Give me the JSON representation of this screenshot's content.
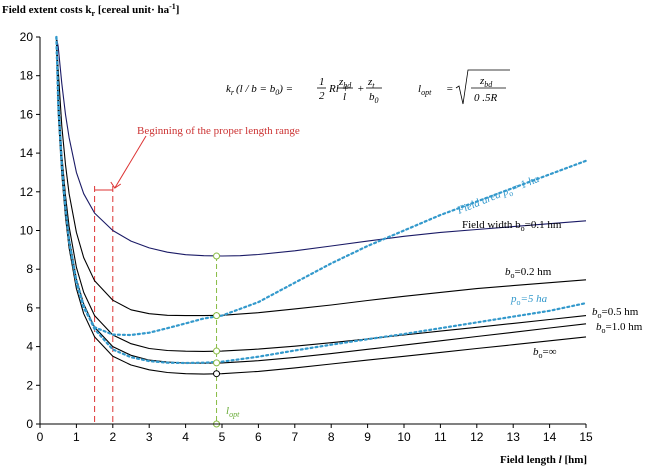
{
  "chart_data": {
    "type": "line",
    "ylabel": "Field extent costs k",
    "ylabel_sub": "r",
    "ylabel_unit": " [cereal unit· ha",
    "ylabel_sup": "-1",
    "ylabel_end": "]",
    "xlabel": "Field length ",
    "xlabel_var": "l",
    "xlabel_unit": " [hm]",
    "xlim": [
      0,
      15
    ],
    "ylim": [
      0,
      20
    ],
    "xticks": [
      0,
      1,
      2,
      3,
      4,
      5,
      6,
      7,
      8,
      9,
      10,
      11,
      12,
      13,
      14,
      15
    ],
    "yticks": [
      0,
      2,
      4,
      6,
      8,
      10,
      12,
      14,
      16,
      18,
      20
    ],
    "colors": {
      "field_width_lines": "#000000",
      "field_width_top": "#1a1a66",
      "field_area_lines": "#3399cc",
      "proper_length_range": "#dd3333",
      "optimum_length": "#88bb44"
    },
    "series": [
      {
        "name": "Field width b = 0.1 hm",
        "style": "solid",
        "color": "#1a1a66",
        "x": [
          0.45,
          0.5,
          0.6,
          0.7,
          0.8,
          1,
          1.2,
          1.5,
          2,
          2.5,
          3,
          3.5,
          4,
          4.5,
          5,
          5.5,
          6,
          7,
          8,
          9,
          10,
          11,
          12,
          13,
          14,
          15
        ],
        "y": [
          20,
          19.5,
          17.6,
          16.0,
          14.8,
          13.0,
          11.9,
          10.9,
          10.0,
          9.45,
          9.1,
          8.88,
          8.75,
          8.7,
          8.68,
          8.7,
          8.76,
          8.95,
          9.2,
          9.45,
          9.7,
          9.9,
          10.05,
          10.2,
          10.35,
          10.5
        ]
      },
      {
        "name": "b = 0.2 hm",
        "style": "solid",
        "color": "#000000",
        "x": [
          0.45,
          0.5,
          0.6,
          0.7,
          0.8,
          1,
          1.2,
          1.5,
          2,
          2.5,
          3,
          3.5,
          4,
          4.5,
          5,
          6,
          7,
          8,
          9,
          10,
          11,
          12,
          13,
          14,
          15
        ],
        "y": [
          20,
          18.3,
          15.4,
          13.4,
          11.9,
          9.9,
          8.6,
          7.4,
          6.4,
          5.9,
          5.7,
          5.62,
          5.6,
          5.6,
          5.62,
          5.75,
          5.95,
          6.15,
          6.38,
          6.6,
          6.8,
          7.0,
          7.15,
          7.3,
          7.45
        ]
      },
      {
        "name": "b = 0.5 hm",
        "style": "solid",
        "color": "#000000",
        "x": [
          0.45,
          0.5,
          0.6,
          0.7,
          0.8,
          1,
          1.2,
          1.5,
          2,
          2.5,
          3,
          3.5,
          4,
          4.5,
          5,
          6,
          7,
          8,
          9,
          10,
          11,
          12,
          13,
          14,
          15
        ],
        "y": [
          20,
          17.0,
          13.9,
          11.8,
          10.2,
          8.1,
          6.8,
          5.6,
          4.6,
          4.15,
          3.9,
          3.8,
          3.76,
          3.75,
          3.77,
          3.87,
          4.02,
          4.2,
          4.4,
          4.6,
          4.8,
          5.0,
          5.2,
          5.4,
          5.6
        ]
      },
      {
        "name": "b = 1.0 hm",
        "style": "solid",
        "color": "#000000",
        "x": [
          0.45,
          0.5,
          0.6,
          0.7,
          0.8,
          1,
          1.2,
          1.5,
          2,
          2.5,
          3,
          3.5,
          4,
          4.5,
          5,
          6,
          7,
          8,
          9,
          10,
          11,
          12,
          13,
          14,
          15
        ],
        "y": [
          20,
          16.6,
          13.4,
          11.2,
          9.6,
          7.5,
          6.2,
          5.0,
          4.0,
          3.55,
          3.3,
          3.2,
          3.15,
          3.14,
          3.16,
          3.27,
          3.44,
          3.64,
          3.86,
          4.08,
          4.3,
          4.52,
          4.74,
          4.96,
          5.18
        ]
      },
      {
        "name": "b = ∞",
        "style": "solid",
        "color": "#000000",
        "x": [
          0.45,
          0.5,
          0.6,
          0.7,
          0.8,
          1,
          1.2,
          1.5,
          2,
          2.5,
          3,
          3.5,
          4,
          4.5,
          5,
          6,
          7,
          8,
          9,
          10,
          11,
          12,
          13,
          14,
          15
        ],
        "y": [
          20,
          16.1,
          12.9,
          10.7,
          9.1,
          7.0,
          5.7,
          4.5,
          3.5,
          3.05,
          2.8,
          2.66,
          2.6,
          2.58,
          2.6,
          2.72,
          2.9,
          3.1,
          3.3,
          3.5,
          3.7,
          3.9,
          4.1,
          4.3,
          4.5
        ]
      },
      {
        "name": "Field area p = 1 ha",
        "style": "dotted",
        "color": "#3399cc",
        "x": [
          0.45,
          0.5,
          0.6,
          0.7,
          0.8,
          1,
          1.2,
          1.5,
          2,
          2.5,
          3,
          3.5,
          4,
          4.5,
          5,
          6,
          7,
          8,
          9,
          10,
          11,
          12,
          13,
          14,
          15
        ],
        "y": [
          20,
          17.0,
          13.5,
          11.2,
          9.4,
          7.3,
          6.0,
          5.0,
          4.62,
          4.6,
          4.72,
          4.95,
          5.2,
          5.45,
          5.6,
          6.3,
          7.3,
          8.3,
          9.2,
          10.0,
          10.8,
          11.5,
          12.2,
          12.9,
          13.6
        ]
      },
      {
        "name": "p = 5 ha",
        "style": "dotted",
        "color": "#3399cc",
        "x": [
          0.45,
          0.5,
          0.6,
          0.7,
          0.8,
          1,
          1.2,
          1.5,
          2,
          2.5,
          3,
          3.5,
          4,
          4.5,
          5,
          6,
          7,
          8,
          9,
          10,
          11,
          12,
          13,
          14,
          15
        ],
        "y": [
          20,
          16.5,
          13.3,
          11.1,
          9.5,
          7.4,
          6.1,
          4.9,
          3.85,
          3.45,
          3.25,
          3.17,
          3.15,
          3.17,
          3.22,
          3.48,
          3.8,
          4.1,
          4.38,
          4.65,
          4.95,
          5.25,
          5.55,
          5.85,
          6.25
        ]
      }
    ],
    "optimum_points": {
      "x": 4.85,
      "y": [
        8.68,
        5.6,
        3.77,
        3.16,
        2.6,
        0
      ]
    },
    "proper_length_range": {
      "x": [
        1.5,
        2.0
      ],
      "y_top": 12.3
    },
    "annotations": {
      "proper_length_label": "Beginning of the proper length range",
      "field_width_label": "Field width b",
      "field_width_sub": "o",
      "field_width_value": "=0.1 hm",
      "b02_var": "b",
      "b02_sub": "o",
      "b02_value": "=0.2 hm",
      "b05_var": "b",
      "b05_sub": "o",
      "b05_value": "=0.5 hm",
      "b10_var": "b",
      "b10_sub": "o",
      "b10_value": "=1.0 hm",
      "binf_var": "b",
      "binf_sub": "o",
      "binf_value": "=∞",
      "area1_label": "Field area p",
      "area1_sub": "o",
      "area1_value": "= 1 ha",
      "area5_var": "p",
      "area5_sub": "o",
      "area5_value": "=5 ha",
      "lopt_var": "l",
      "lopt_sub": "opt"
    },
    "formulas": {
      "f1_lhs": "k",
      "f1_lhs_sub": "r",
      "f1_arg": "(l / b = b",
      "f1_arg_sub": "0",
      "f1_arg_end": ") =",
      "f1_half_num": "1",
      "f1_half_den": "2",
      "f1_rl": "Rl +",
      "f1_frac1_num": "z",
      "f1_frac1_num_sub": "bd",
      "f1_frac1_den": "l",
      "f1_plus": "+",
      "f1_frac2_num": "z",
      "f1_frac2_num_sub": "t",
      "f1_frac2_den": "b",
      "f1_frac2_den_sub": "0",
      "f2_lhs": "l",
      "f2_lhs_sub": "opt",
      "f2_eq": "=",
      "f2_num": "z",
      "f2_num_sub": "bd",
      "f2_den": "0 .5R"
    }
  }
}
